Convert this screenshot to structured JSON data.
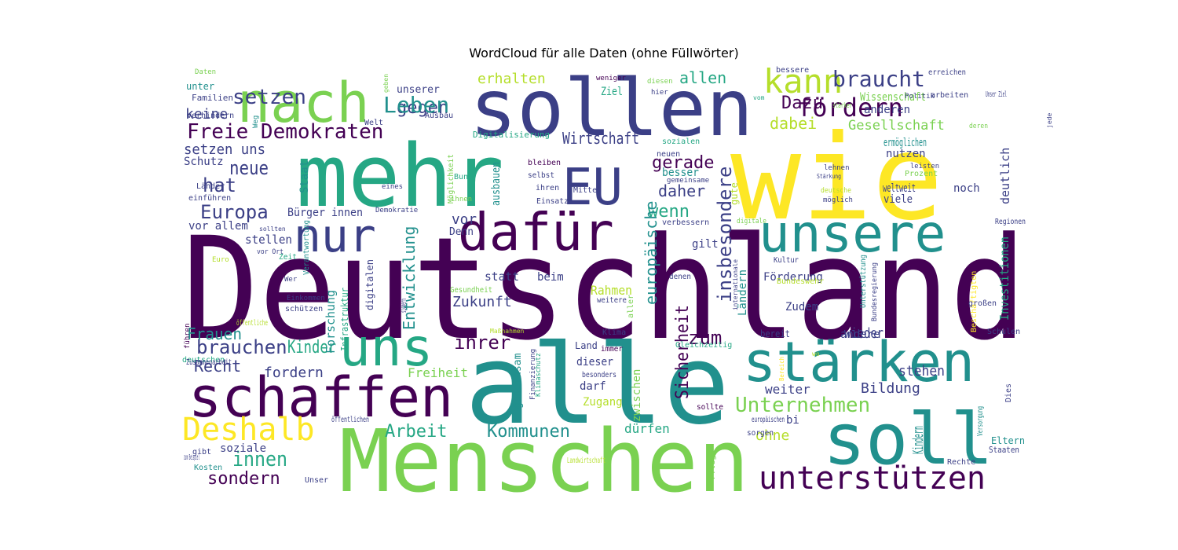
{
  "title": "WordCloud für alle Daten (ohne Füllwörter)",
  "palette": {
    "dark_purple": "#440154",
    "indigo": "#3b3f86",
    "blue": "#31688e",
    "teal": "#21908d",
    "green_teal": "#25a784",
    "green": "#35b779",
    "light_green": "#7ad151",
    "lime": "#b5de2b",
    "yellow": "#fde725",
    "background": "#ffffff"
  },
  "words": [
    {
      "text": "Deutschland",
      "color": "dark_purple"
    },
    {
      "text": "wie",
      "color": "yellow"
    },
    {
      "text": "alle",
      "color": "teal"
    },
    {
      "text": "Menschen",
      "color": "light_green"
    },
    {
      "text": "mehr",
      "color": "green_teal"
    },
    {
      "text": "sollen",
      "color": "indigo"
    },
    {
      "text": "soll",
      "color": "teal"
    },
    {
      "text": "nach",
      "color": "light_green"
    },
    {
      "text": "schaffen",
      "color": "dark_purple"
    },
    {
      "text": "stärken",
      "color": "teal"
    },
    {
      "text": "unsere",
      "color": "teal"
    },
    {
      "text": "uns",
      "color": "green_teal"
    },
    {
      "text": "nur",
      "color": "indigo"
    },
    {
      "text": "dafür",
      "color": "dark_purple"
    },
    {
      "text": "EU",
      "color": "indigo"
    },
    {
      "text": "kann",
      "color": "lime"
    },
    {
      "text": "unterstützen",
      "color": "dark_purple"
    },
    {
      "text": "Deshalb",
      "color": "yellow"
    },
    {
      "text": "Freie Demokraten",
      "color": "dark_purple"
    },
    {
      "text": "fördern",
      "color": "dark_purple"
    },
    {
      "text": "braucht",
      "color": "indigo"
    },
    {
      "text": "setzen",
      "color": "indigo"
    },
    {
      "text": "gegen",
      "color": "indigo"
    },
    {
      "text": "Leben",
      "color": "teal"
    },
    {
      "text": "erhalten",
      "color": "lime"
    },
    {
      "text": "allen",
      "color": "green_teal"
    },
    {
      "text": "Dazu",
      "color": "dark_purple"
    },
    {
      "text": "dabei",
      "color": "lime"
    },
    {
      "text": "Gesellschaft",
      "color": "light_green"
    },
    {
      "text": "Wirtschaft",
      "color": "indigo"
    },
    {
      "text": "neue",
      "color": "indigo"
    },
    {
      "text": "hat",
      "color": "indigo"
    },
    {
      "text": "Europa",
      "color": "indigo"
    },
    {
      "text": "brauchen",
      "color": "indigo"
    },
    {
      "text": "innen",
      "color": "green_teal"
    },
    {
      "text": "sondern",
      "color": "dark_purple"
    },
    {
      "text": "Unternehmen",
      "color": "light_green"
    },
    {
      "text": "Bildung",
      "color": "indigo"
    },
    {
      "text": "Arbeit",
      "color": "green_teal"
    },
    {
      "text": "Kommunen",
      "color": "teal"
    },
    {
      "text": "ihrer",
      "color": "dark_purple"
    },
    {
      "text": "zum",
      "color": "dark_purple"
    },
    {
      "text": "wenn",
      "color": "green_teal"
    },
    {
      "text": "gerade",
      "color": "dark_purple"
    },
    {
      "text": "daher",
      "color": "indigo"
    },
    {
      "text": "insbesondere",
      "color": "indigo"
    },
    {
      "text": "europäische",
      "color": "teal"
    },
    {
      "text": "Sicherheit",
      "color": "dark_purple"
    },
    {
      "text": "Zukunft",
      "color": "indigo"
    },
    {
      "text": "Entwicklung",
      "color": "teal"
    },
    {
      "text": "Frauen",
      "color": "teal"
    },
    {
      "text": "Recht",
      "color": "indigo"
    },
    {
      "text": "fordern",
      "color": "indigo"
    },
    {
      "text": "Kinder",
      "color": "green_teal"
    },
    {
      "text": "keine",
      "color": "indigo"
    },
    {
      "text": "setzen uns",
      "color": "indigo"
    },
    {
      "text": "Schutz",
      "color": "indigo"
    },
    {
      "text": "unter",
      "color": "teal"
    },
    {
      "text": "Familien",
      "color": "indigo"
    },
    {
      "text": "verhindern",
      "color": "indigo"
    },
    {
      "text": "Daten",
      "color": "light_green"
    },
    {
      "text": "unserer",
      "color": "indigo"
    },
    {
      "text": "geben",
      "color": "light_green"
    },
    {
      "text": "Ziel",
      "color": "green_teal"
    },
    {
      "text": "weniger",
      "color": "dark_purple"
    },
    {
      "text": "diesen",
      "color": "light_green"
    },
    {
      "text": "hier",
      "color": "indigo"
    },
    {
      "text": "vom",
      "color": "green_teal"
    },
    {
      "text": "Digitalisierung",
      "color": "green_teal"
    },
    {
      "text": "sozialen",
      "color": "green_teal"
    },
    {
      "text": "neuen",
      "color": "indigo"
    },
    {
      "text": "bleiben",
      "color": "dark_purple"
    },
    {
      "text": "selbst",
      "color": "indigo"
    },
    {
      "text": "ihren",
      "color": "indigo"
    },
    {
      "text": "Mittel",
      "color": "indigo"
    },
    {
      "text": "Einsatz",
      "color": "indigo"
    },
    {
      "text": "besser",
      "color": "teal"
    },
    {
      "text": "gemeinsame",
      "color": "indigo"
    },
    {
      "text": "gute",
      "color": "lime"
    },
    {
      "text": "ausbauen",
      "color": "teal"
    },
    {
      "text": "Bund",
      "color": "green_teal"
    },
    {
      "text": "ihnen",
      "color": "light_green"
    },
    {
      "text": "Möglichkeit",
      "color": "light_green"
    },
    {
      "text": "eines",
      "color": "indigo"
    },
    {
      "text": "Staat",
      "color": "teal"
    },
    {
      "text": "Bürger innen",
      "color": "indigo"
    },
    {
      "text": "Demokratie",
      "color": "indigo"
    },
    {
      "text": "vor",
      "color": "indigo"
    },
    {
      "text": "Denn",
      "color": "indigo"
    },
    {
      "text": "vor allem",
      "color": "indigo"
    },
    {
      "text": "stellen",
      "color": "indigo"
    },
    {
      "text": "sollten",
      "color": "indigo"
    },
    {
      "text": "vor Ort",
      "color": "indigo"
    },
    {
      "text": "Zeit",
      "color": "green_teal"
    },
    {
      "text": "Euro",
      "color": "lime"
    },
    {
      "text": "Wer",
      "color": "indigo"
    },
    {
      "text": "Verantwortung",
      "color": "teal"
    },
    {
      "text": "digitalen",
      "color": "indigo"
    },
    {
      "text": "Einkommen",
      "color": "indigo"
    },
    {
      "text": "schützen",
      "color": "indigo"
    },
    {
      "text": "Forschung",
      "color": "teal"
    },
    {
      "text": "Infrastruktur",
      "color": "green_teal"
    },
    {
      "text": "Gesundheit",
      "color": "light_green"
    },
    {
      "text": "sichern",
      "color": "indigo"
    },
    {
      "text": "statt",
      "color": "indigo"
    },
    {
      "text": "beim",
      "color": "indigo"
    },
    {
      "text": "Rahmen",
      "color": "lime"
    },
    {
      "text": "Maßnahmen",
      "color": "lime"
    },
    {
      "text": "gilt",
      "color": "indigo"
    },
    {
      "text": "verbessern",
      "color": "indigo"
    },
    {
      "text": "denen",
      "color": "indigo"
    },
    {
      "text": "weitere",
      "color": "indigo"
    },
    {
      "text": "Förderung",
      "color": "indigo"
    },
    {
      "text": "Zudem",
      "color": "indigo"
    },
    {
      "text": "Ländern",
      "color": "teal"
    },
    {
      "text": "Kultur",
      "color": "indigo"
    },
    {
      "text": "internationale",
      "color": "indigo"
    },
    {
      "text": "digitale",
      "color": "light_green"
    },
    {
      "text": "Bundeswehr",
      "color": "lime"
    },
    {
      "text": "Unterstützung",
      "color": "teal"
    },
    {
      "text": "Bundesregierung",
      "color": "indigo"
    },
    {
      "text": "Beschäftigten",
      "color": "yellow"
    },
    {
      "text": "Investitionen",
      "color": "green_teal"
    },
    {
      "text": "Regionen",
      "color": "indigo"
    },
    {
      "text": "großen",
      "color": "indigo"
    },
    {
      "text": "Schulen",
      "color": "indigo"
    },
    {
      "text": "bereit",
      "color": "indigo"
    },
    {
      "text": "andere",
      "color": "indigo"
    },
    {
      "text": "wieder",
      "color": "indigo"
    },
    {
      "text": "Gleichzeitig",
      "color": "green_teal"
    },
    {
      "text": "wo",
      "color": "lime"
    },
    {
      "text": "Bereich",
      "color": "yellow"
    },
    {
      "text": "Klima",
      "color": "indigo"
    },
    {
      "text": "Land",
      "color": "indigo"
    },
    {
      "text": "immer",
      "color": "dark_purple"
    },
    {
      "text": "dieser",
      "color": "indigo"
    },
    {
      "text": "besonders",
      "color": "indigo"
    },
    {
      "text": "darf",
      "color": "indigo"
    },
    {
      "text": "Zugang",
      "color": "lime"
    },
    {
      "text": "Klimaschutz",
      "color": "green_teal"
    },
    {
      "text": "Finanzierung",
      "color": "indigo"
    },
    {
      "text": "gemeinsam",
      "color": "teal"
    },
    {
      "text": "aller",
      "color": "light_green"
    },
    {
      "text": "zwischen",
      "color": "light_green"
    },
    {
      "text": "sollte",
      "color": "dark_purple"
    },
    {
      "text": "weiter",
      "color": "indigo"
    },
    {
      "text": "stehen",
      "color": "indigo"
    },
    {
      "text": "bi",
      "color": "indigo"
    },
    {
      "text": "ohne",
      "color": "lime"
    },
    {
      "text": "dürfen",
      "color": "green_teal"
    },
    {
      "text": "europäischen",
      "color": "indigo"
    },
    {
      "text": "sorgen",
      "color": "indigo"
    },
    {
      "text": "Pflege",
      "color": "light_green"
    },
    {
      "text": "Kindern",
      "color": "teal"
    },
    {
      "text": "Dies",
      "color": "indigo"
    },
    {
      "text": "Versorgung",
      "color": "teal"
    },
    {
      "text": "Eltern",
      "color": "teal"
    },
    {
      "text": "Staaten",
      "color": "indigo"
    },
    {
      "text": "Rechte",
      "color": "indigo"
    },
    {
      "text": "Landwirtschaft",
      "color": "lime"
    },
    {
      "text": "Freiheit",
      "color": "light_green"
    },
    {
      "text": "deutschen",
      "color": "green_teal"
    },
    {
      "text": "Zusammenarbeit",
      "color": "indigo"
    },
    {
      "text": "öffentliche",
      "color": "lime"
    },
    {
      "text": "führen",
      "color": "dark_purple"
    },
    {
      "text": "öffentlichen",
      "color": "indigo"
    },
    {
      "text": "soziale",
      "color": "indigo"
    },
    {
      "text": "zum Beispiel",
      "color": "indigo"
    },
    {
      "text": "gibt",
      "color": "indigo"
    },
    {
      "text": "Kosten",
      "color": "teal"
    },
    {
      "text": "Unser",
      "color": "indigo"
    },
    {
      "text": "Weg",
      "color": "teal"
    },
    {
      "text": "Welt",
      "color": "indigo"
    },
    {
      "text": "Ausbau",
      "color": "indigo"
    },
    {
      "text": "bessere",
      "color": "indigo"
    },
    {
      "text": "Wissenschaft",
      "color": "light_green"
    },
    {
      "text": "erreichen",
      "color": "indigo"
    },
    {
      "text": "anderen",
      "color": "indigo"
    },
    {
      "text": "Politik",
      "color": "indigo"
    },
    {
      "text": "arbeiten",
      "color": "indigo"
    },
    {
      "text": "Unser Ziel",
      "color": "indigo"
    },
    {
      "text": "stärker",
      "color": "light_green"
    },
    {
      "text": "deren",
      "color": "light_green"
    },
    {
      "text": "jede",
      "color": "indigo"
    },
    {
      "text": "deutlich",
      "color": "indigo"
    },
    {
      "text": "ermöglichen",
      "color": "teal"
    },
    {
      "text": "nutzen",
      "color": "indigo"
    },
    {
      "text": "lehnen",
      "color": "indigo"
    },
    {
      "text": "leisten",
      "color": "indigo"
    },
    {
      "text": "Prozent",
      "color": "light_green"
    },
    {
      "text": "Stärkung",
      "color": "indigo"
    },
    {
      "text": "deutsche",
      "color": "lime"
    },
    {
      "text": "möglich",
      "color": "indigo"
    },
    {
      "text": "weltweit",
      "color": "indigo"
    },
    {
      "text": "viele",
      "color": "indigo"
    },
    {
      "text": "noch",
      "color": "indigo"
    },
    {
      "text": "Länder",
      "color": "indigo"
    },
    {
      "text": "einführen",
      "color": "indigo"
    },
    {
      "text": "Ausbildung",
      "color": "lime"
    }
  ]
}
